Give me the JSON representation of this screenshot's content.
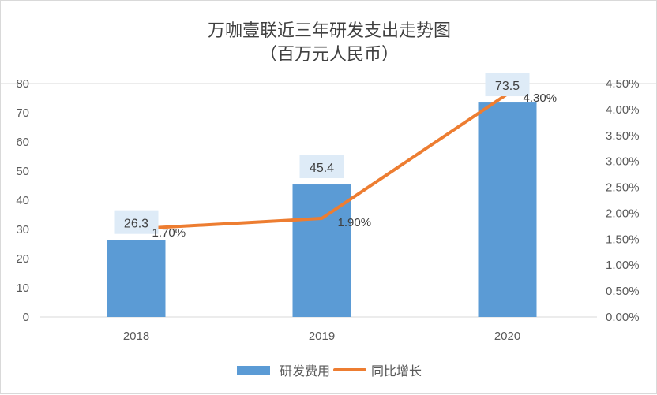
{
  "chart_data": {
    "type": "bar+line",
    "title": "万咖壹联近三年研发支出走势图",
    "subtitle": "（百万元人民币）",
    "categories": [
      "2018",
      "2019",
      "2020"
    ],
    "series": [
      {
        "name": "研发费用",
        "type": "bar",
        "axis": "left",
        "values": [
          26.3,
          45.4,
          73.5
        ],
        "labels": [
          "26.3",
          "45.4",
          "73.5"
        ],
        "color": "#5b9bd5"
      },
      {
        "name": "同比增长",
        "type": "line",
        "axis": "right",
        "values": [
          1.7,
          1.9,
          4.3
        ],
        "labels": [
          "1.70%",
          "1.90%",
          "4.30%"
        ],
        "color": "#ed7d31"
      }
    ],
    "y_left": {
      "lim": [
        0,
        80
      ],
      "ticks": [
        "0",
        "10",
        "20",
        "30",
        "40",
        "50",
        "60",
        "70",
        "80"
      ]
    },
    "y_right": {
      "lim": [
        0,
        4.5
      ],
      "ticks": [
        "0.00%",
        "0.50%",
        "1.00%",
        "1.50%",
        "2.00%",
        "2.50%",
        "3.00%",
        "3.50%",
        "4.00%",
        "4.50%"
      ]
    },
    "grid": false,
    "legend": "bottom"
  }
}
